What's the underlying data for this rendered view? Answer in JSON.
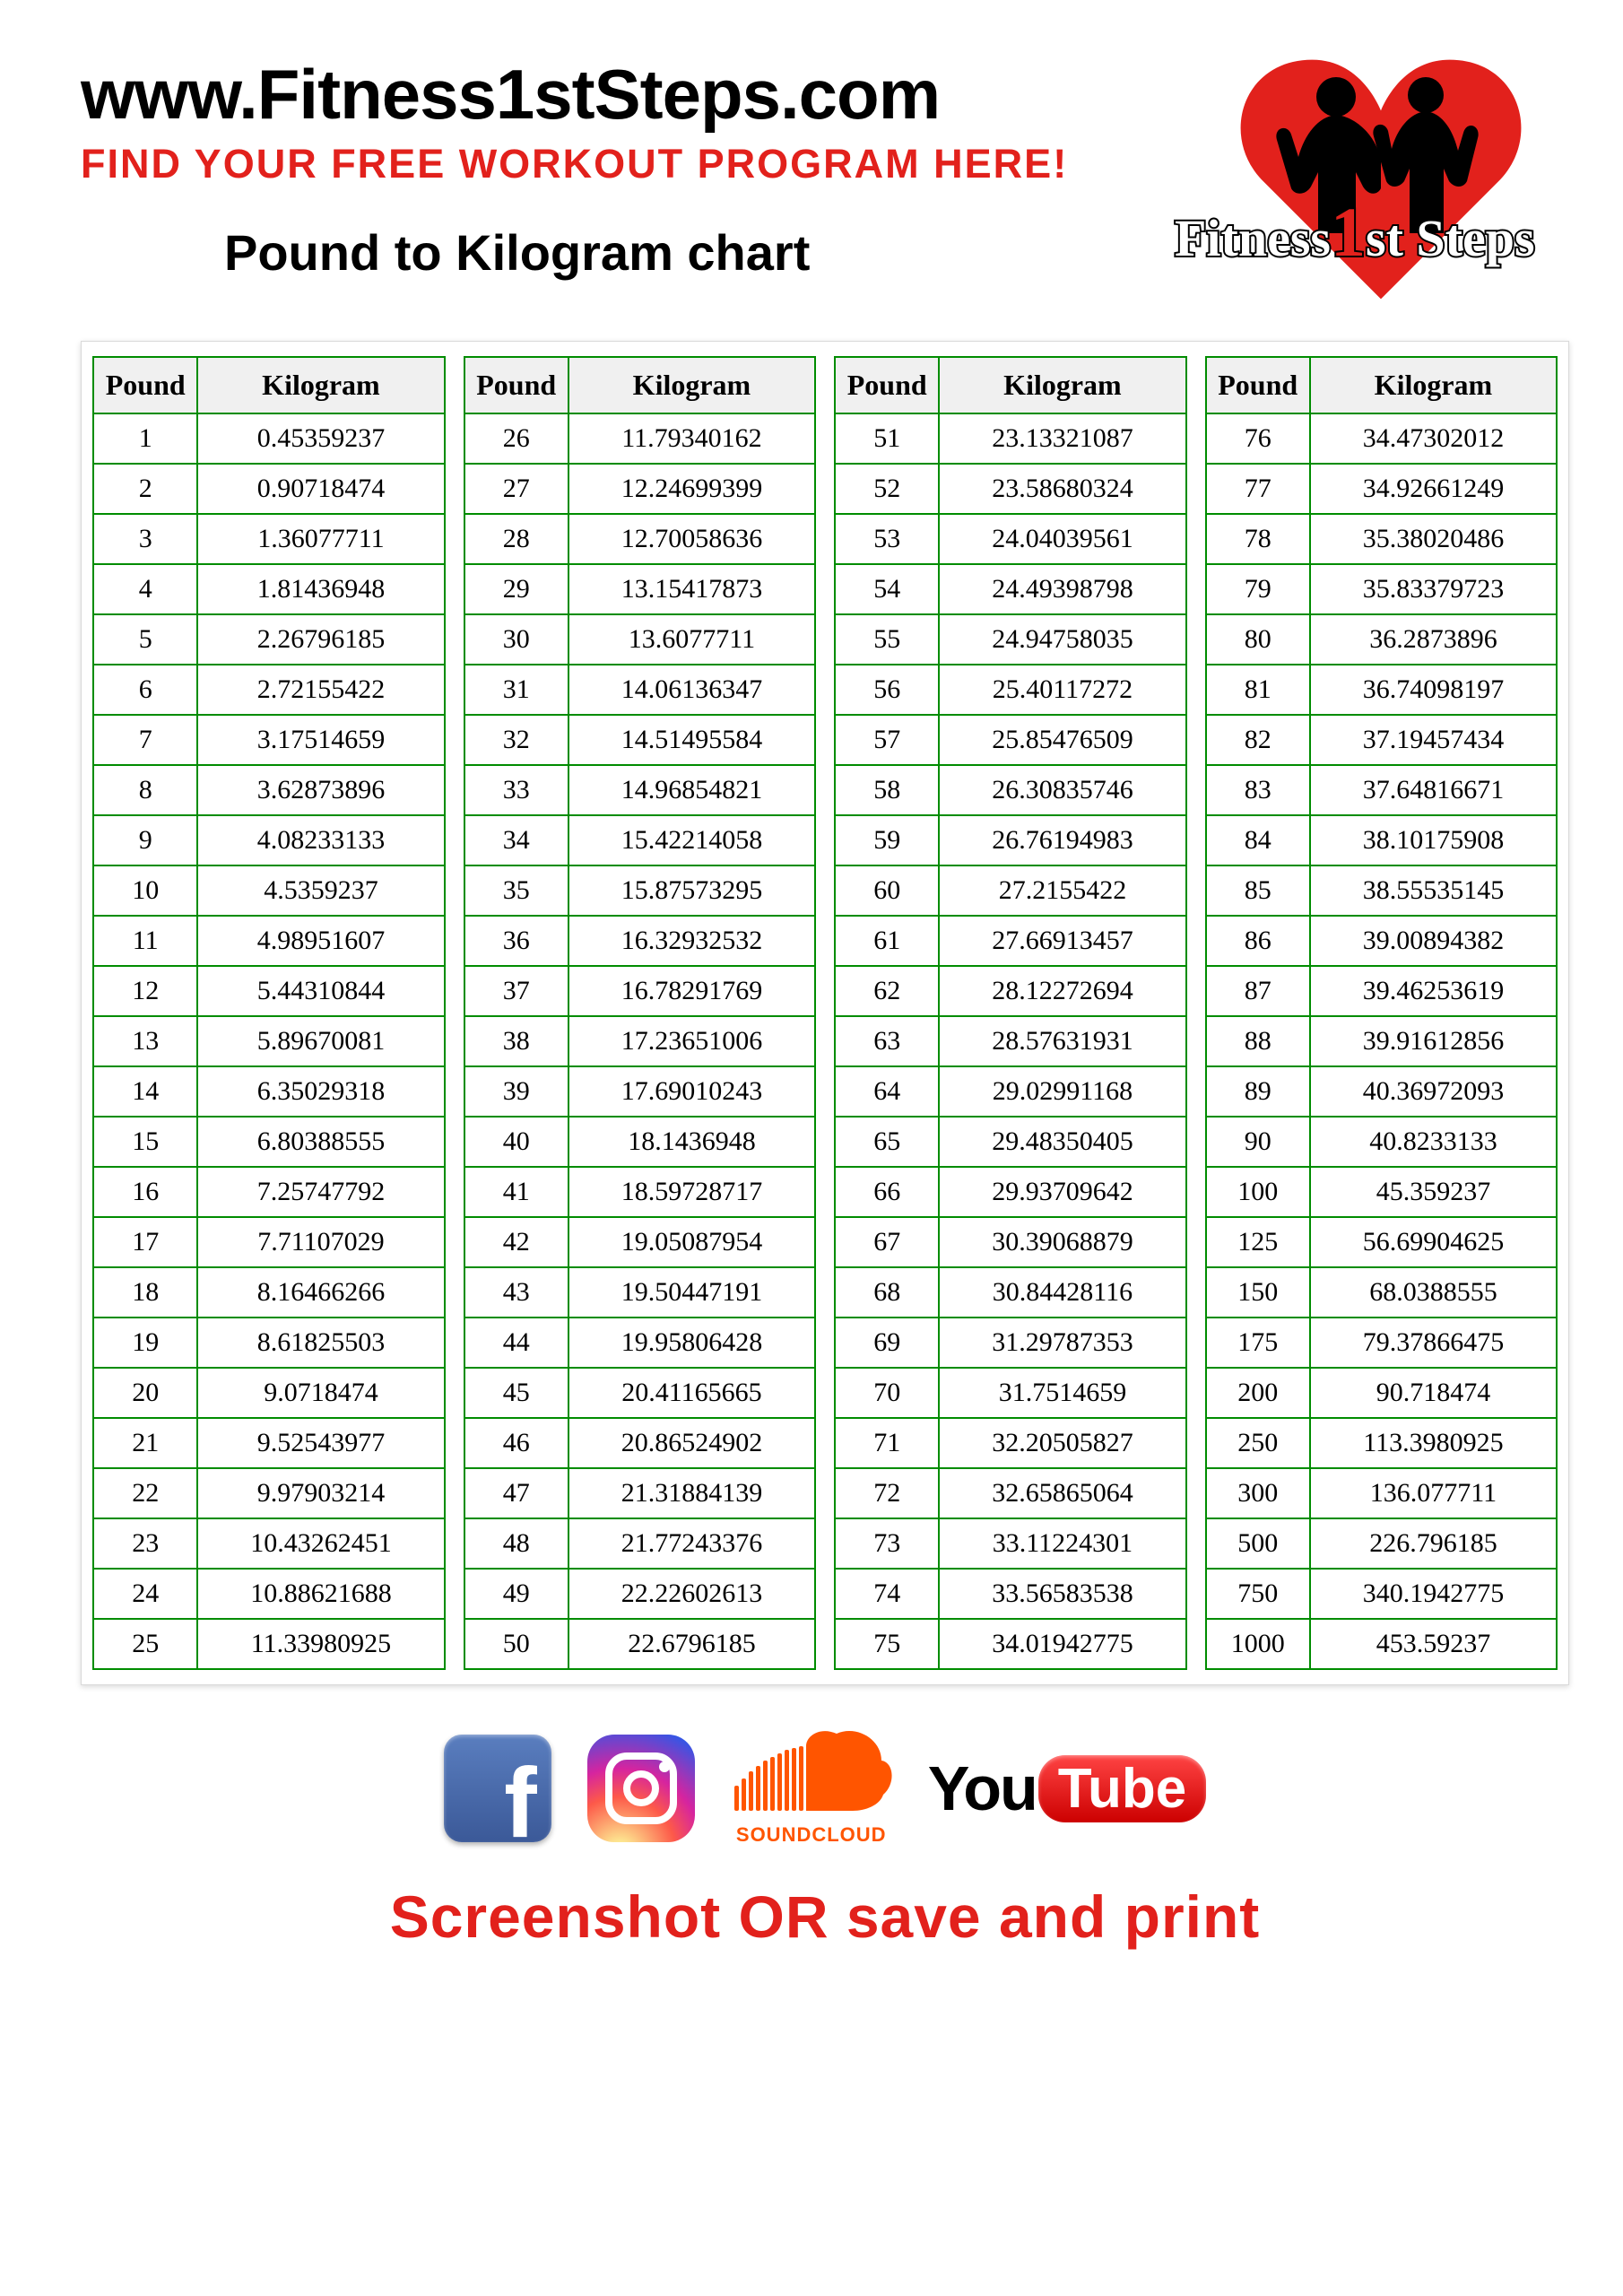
{
  "header": {
    "url": "www.Fitness1stSteps.com",
    "tagline": "FIND YOUR FREE WORKOUT PROGRAM HERE!",
    "chart_title": "Pound to Kilogram chart",
    "logo_text_a": "Fitness",
    "logo_text_1": "1",
    "logo_text_b": "st Steps"
  },
  "table": {
    "type": "table",
    "border_color": "#008c00",
    "header_bg": "#f0f0f0",
    "font_family": "Times New Roman",
    "cell_fontsize": 30,
    "header_fontsize": 32,
    "col_pound": "Pound",
    "col_kilogram": "Kilogram",
    "columns_count": 4,
    "data": [
      [
        [
          1,
          "0.45359237"
        ],
        [
          2,
          "0.90718474"
        ],
        [
          3,
          "1.36077711"
        ],
        [
          4,
          "1.81436948"
        ],
        [
          5,
          "2.26796185"
        ],
        [
          6,
          "2.72155422"
        ],
        [
          7,
          "3.17514659"
        ],
        [
          8,
          "3.62873896"
        ],
        [
          9,
          "4.08233133"
        ],
        [
          10,
          "4.5359237"
        ],
        [
          11,
          "4.98951607"
        ],
        [
          12,
          "5.44310844"
        ],
        [
          13,
          "5.89670081"
        ],
        [
          14,
          "6.35029318"
        ],
        [
          15,
          "6.80388555"
        ],
        [
          16,
          "7.25747792"
        ],
        [
          17,
          "7.71107029"
        ],
        [
          18,
          "8.16466266"
        ],
        [
          19,
          "8.61825503"
        ],
        [
          20,
          "9.0718474"
        ],
        [
          21,
          "9.52543977"
        ],
        [
          22,
          "9.97903214"
        ],
        [
          23,
          "10.43262451"
        ],
        [
          24,
          "10.88621688"
        ],
        [
          25,
          "11.33980925"
        ]
      ],
      [
        [
          26,
          "11.79340162"
        ],
        [
          27,
          "12.24699399"
        ],
        [
          28,
          "12.70058636"
        ],
        [
          29,
          "13.15417873"
        ],
        [
          30,
          "13.6077711"
        ],
        [
          31,
          "14.06136347"
        ],
        [
          32,
          "14.51495584"
        ],
        [
          33,
          "14.96854821"
        ],
        [
          34,
          "15.42214058"
        ],
        [
          35,
          "15.87573295"
        ],
        [
          36,
          "16.32932532"
        ],
        [
          37,
          "16.78291769"
        ],
        [
          38,
          "17.23651006"
        ],
        [
          39,
          "17.69010243"
        ],
        [
          40,
          "18.1436948"
        ],
        [
          41,
          "18.59728717"
        ],
        [
          42,
          "19.05087954"
        ],
        [
          43,
          "19.50447191"
        ],
        [
          44,
          "19.95806428"
        ],
        [
          45,
          "20.41165665"
        ],
        [
          46,
          "20.86524902"
        ],
        [
          47,
          "21.31884139"
        ],
        [
          48,
          "21.77243376"
        ],
        [
          49,
          "22.22602613"
        ],
        [
          50,
          "22.6796185"
        ]
      ],
      [
        [
          51,
          "23.13321087"
        ],
        [
          52,
          "23.58680324"
        ],
        [
          53,
          "24.04039561"
        ],
        [
          54,
          "24.49398798"
        ],
        [
          55,
          "24.94758035"
        ],
        [
          56,
          "25.40117272"
        ],
        [
          57,
          "25.85476509"
        ],
        [
          58,
          "26.30835746"
        ],
        [
          59,
          "26.76194983"
        ],
        [
          60,
          "27.2155422"
        ],
        [
          61,
          "27.66913457"
        ],
        [
          62,
          "28.12272694"
        ],
        [
          63,
          "28.57631931"
        ],
        [
          64,
          "29.02991168"
        ],
        [
          65,
          "29.48350405"
        ],
        [
          66,
          "29.93709642"
        ],
        [
          67,
          "30.39068879"
        ],
        [
          68,
          "30.84428116"
        ],
        [
          69,
          "31.29787353"
        ],
        [
          70,
          "31.7514659"
        ],
        [
          71,
          "32.20505827"
        ],
        [
          72,
          "32.65865064"
        ],
        [
          73,
          "33.11224301"
        ],
        [
          74,
          "33.56583538"
        ],
        [
          75,
          "34.01942775"
        ]
      ],
      [
        [
          76,
          "34.47302012"
        ],
        [
          77,
          "34.92661249"
        ],
        [
          78,
          "35.38020486"
        ],
        [
          79,
          "35.83379723"
        ],
        [
          80,
          "36.2873896"
        ],
        [
          81,
          "36.74098197"
        ],
        [
          82,
          "37.19457434"
        ],
        [
          83,
          "37.64816671"
        ],
        [
          84,
          "38.10175908"
        ],
        [
          85,
          "38.55535145"
        ],
        [
          86,
          "39.00894382"
        ],
        [
          87,
          "39.46253619"
        ],
        [
          88,
          "39.91612856"
        ],
        [
          89,
          "40.36972093"
        ],
        [
          90,
          "40.8233133"
        ],
        [
          100,
          "45.359237"
        ],
        [
          125,
          "56.69904625"
        ],
        [
          150,
          "68.0388555"
        ],
        [
          175,
          "79.37866475"
        ],
        [
          200,
          "90.718474"
        ],
        [
          250,
          "113.3980925"
        ],
        [
          300,
          "136.077711"
        ],
        [
          500,
          "226.796185"
        ],
        [
          750,
          "340.1942775"
        ],
        [
          1000,
          "453.59237"
        ]
      ]
    ]
  },
  "colors": {
    "red": "#e2211c",
    "green": "#008c00",
    "facebook": "#3b5998",
    "soundcloud": "#ff5500",
    "youtube": "#cc0000"
  },
  "footer": {
    "soundcloud_label": "SOUNDCLOUD",
    "youtube_you": "You",
    "youtube_tube": "Tube",
    "instruction": "Screenshot OR save and print"
  }
}
